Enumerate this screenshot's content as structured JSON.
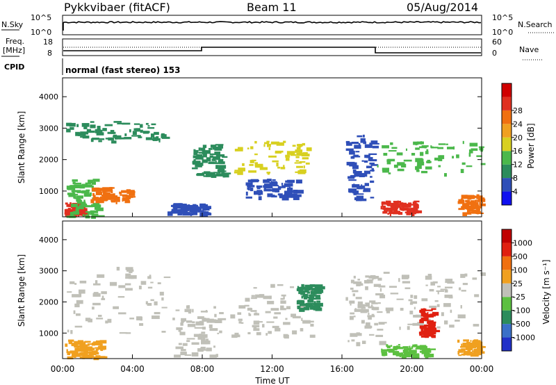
{
  "header": {
    "station": "Pykkvibaer (fitACF)",
    "beam": "Beam 11",
    "date": "05/Aug/2014"
  },
  "status_panels": {
    "nsky_label": "N.Sky",
    "nsearch_label": "N.Search",
    "freq_label_1": "Freq.",
    "freq_label_2": "[MHz]",
    "nave_label": "Nave",
    "cpid_label": "CPID",
    "cpid_text": "normal (fast stereo) 153",
    "noise_ticks_left": [
      "10^5",
      "10^0"
    ],
    "noise_ticks_right": [
      "10^5",
      "10^0"
    ],
    "freq_ticks_left": [
      "18",
      "8"
    ],
    "freq_ticks_right": [
      "60",
      "0"
    ]
  },
  "chart_data": [
    {
      "type": "heatmap",
      "panel": "power",
      "ylabel": "Slant Range [km]",
      "xlabel": "",
      "ylim": [
        180,
        4600
      ],
      "yticks": [
        1000,
        2000,
        3000,
        4000
      ],
      "colorbar_label": "Power [dB]",
      "colorbar_ticks": [
        "4",
        "8",
        "12",
        "16",
        "20",
        "24",
        "28"
      ],
      "colorbar_colors": [
        "#1010f0",
        "#2f4fb8",
        "#2c8c5c",
        "#4bb84b",
        "#d8d020",
        "#f0a020",
        "#f07010",
        "#e03020",
        "#d00000"
      ]
    },
    {
      "type": "heatmap",
      "panel": "velocity",
      "ylabel": "Slant Range [km]",
      "xlabel": "Time UT",
      "ylim": [
        180,
        4600
      ],
      "yticks": [
        1000,
        2000,
        3000,
        4000
      ],
      "xticks": [
        "00:00",
        "04:00",
        "08:00",
        "12:00",
        "16:00",
        "20:00",
        "00:00"
      ],
      "colorbar_label": "Velocity [m s⁻¹]",
      "colorbar_ticks": [
        "1000",
        "500",
        "100",
        "25",
        "-25",
        "-100",
        "-500",
        "-1000"
      ],
      "colorbar_colors": [
        "#2030c8",
        "#3a70c8",
        "#2c8c5c",
        "#5cc040",
        "#c0c0b8",
        "#f0a020",
        "#f07010",
        "#e02010",
        "#c00000"
      ]
    }
  ],
  "series_regions": {
    "power": [
      {
        "t0": 0.1,
        "t1": 1.1,
        "r0": 280,
        "r1": 650,
        "color": "#e03020"
      },
      {
        "t0": 0.2,
        "t1": 2.0,
        "r0": 200,
        "r1": 1400,
        "color": "#4bb84b"
      },
      {
        "t0": 1.6,
        "t1": 3.8,
        "r0": 700,
        "r1": 1150,
        "color": "#f07010"
      },
      {
        "t0": 0.2,
        "t1": 5.8,
        "r0": 2600,
        "r1": 3250,
        "color": "#2c8c5c"
      },
      {
        "t0": 6.0,
        "t1": 8.2,
        "r0": 300,
        "r1": 620,
        "color": "#2f4fb8"
      },
      {
        "t0": 7.4,
        "t1": 9.2,
        "r0": 1500,
        "r1": 2500,
        "color": "#2c8c5c"
      },
      {
        "t0": 9.8,
        "t1": 14.0,
        "r0": 1600,
        "r1": 2600,
        "color": "#d8d020"
      },
      {
        "t0": 10.4,
        "t1": 13.5,
        "r0": 800,
        "r1": 1400,
        "color": "#2f4fb8"
      },
      {
        "t0": 16.2,
        "t1": 17.8,
        "r0": 700,
        "r1": 2800,
        "color": "#2f4fb8"
      },
      {
        "t0": 18.0,
        "t1": 24.0,
        "r0": 1500,
        "r1": 2600,
        "color": "#4bb84b"
      },
      {
        "t0": 18.2,
        "t1": 20.2,
        "r0": 300,
        "r1": 700,
        "color": "#e03020"
      },
      {
        "t0": 22.6,
        "t1": 24.0,
        "r0": 300,
        "r1": 900,
        "color": "#f07010"
      }
    ],
    "velocity": [
      {
        "t0": 0.1,
        "t1": 2.2,
        "r0": 250,
        "r1": 800,
        "color": "#f0a020"
      },
      {
        "t0": 0.2,
        "t1": 5.8,
        "r0": 1000,
        "r1": 3200,
        "color": "#c0c0b8"
      },
      {
        "t0": 6.2,
        "t1": 9.0,
        "r0": 300,
        "r1": 2000,
        "color": "#c0c0b8"
      },
      {
        "t0": 9.6,
        "t1": 14.2,
        "r0": 900,
        "r1": 2600,
        "color": "#c0c0b8"
      },
      {
        "t0": 13.4,
        "t1": 14.6,
        "r0": 1800,
        "r1": 2600,
        "color": "#2c8c5c"
      },
      {
        "t0": 16.2,
        "t1": 18.2,
        "r0": 700,
        "r1": 2900,
        "color": "#c0c0b8"
      },
      {
        "t0": 18.0,
        "t1": 24.0,
        "r0": 1200,
        "r1": 3000,
        "color": "#c0c0b8"
      },
      {
        "t0": 18.2,
        "t1": 21.0,
        "r0": 300,
        "r1": 650,
        "color": "#5cc040"
      },
      {
        "t0": 20.4,
        "t1": 21.2,
        "r0": 900,
        "r1": 1800,
        "color": "#e02010"
      },
      {
        "t0": 22.6,
        "t1": 24.0,
        "r0": 300,
        "r1": 800,
        "color": "#f0a020"
      }
    ]
  }
}
